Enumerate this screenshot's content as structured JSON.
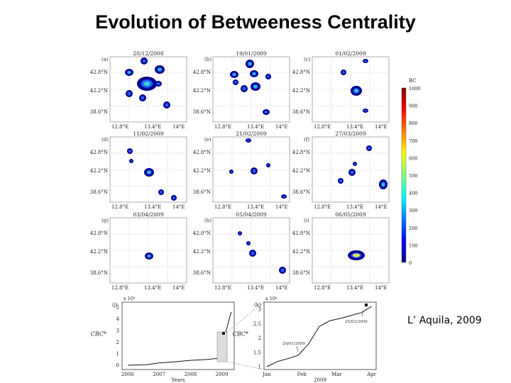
{
  "page": {
    "title": "Evolution of Betweeness Centrality",
    "caption": "L’ Aquila, 2009"
  },
  "chart_data": [
    {
      "type": "heatmap",
      "title": "Betweenness centrality maps",
      "xlabel": "",
      "ylabel": "",
      "x_ticks": [
        "12.8°E",
        "13.4°E",
        "14°E"
      ],
      "y_ticks": [
        "42.8°N",
        "42.2°N",
        "38.6°N"
      ],
      "panels": [
        {
          "label": "(a)",
          "date": "20/12/2008"
        },
        {
          "label": "(b)",
          "date": "19/01/2009"
        },
        {
          "label": "(c)",
          "date": "01/02/2009"
        },
        {
          "label": "(d)",
          "date": "11/02/2009"
        },
        {
          "label": "(e)",
          "date": "21/02/2009"
        },
        {
          "label": "(f)",
          "date": "27/03/2009"
        },
        {
          "label": "(g)",
          "date": "03/04/2009"
        },
        {
          "label": "(h)",
          "date": "05/04/2009"
        },
        {
          "label": "(i)",
          "date": "06/05/2009"
        }
      ],
      "colorbar": {
        "label": "BC",
        "range": [
          0,
          1000
        ],
        "ticks": [
          "1000",
          "900",
          "800",
          "700",
          "600",
          "500",
          "400",
          "300",
          "200",
          "100",
          "0"
        ],
        "colors": [
          "#000080",
          "#0000ff",
          "#0080ff",
          "#00ffff",
          "#80ff80",
          "#ffff00",
          "#ff8000",
          "#ff0000",
          "#800000"
        ]
      }
    },
    {
      "type": "line",
      "label": "(j)",
      "ylabel": "CBC*",
      "xlabel": "Years",
      "y_multiplier": "x 10⁴",
      "x_ticks": [
        "2006",
        "2007",
        "2008",
        "2009"
      ],
      "y_ticks": [
        "0",
        "1",
        "2",
        "3",
        "4",
        "5"
      ],
      "x": [
        2006.0,
        2006.6,
        2007.0,
        2007.5,
        2008.0,
        2008.5,
        2008.9,
        2009.0,
        2009.1,
        2009.2,
        2009.3
      ],
      "y": [
        0.0,
        0.05,
        0.2,
        0.3,
        0.42,
        0.5,
        0.6,
        1.3,
        2.6,
        3.6,
        4.6
      ]
    },
    {
      "type": "line",
      "label": "(k)",
      "ylabel": "CBC*",
      "xlabel": "2009",
      "y_multiplier": "x 10⁴",
      "x_ticks": [
        "Jan",
        "Feb",
        "Mar",
        "Apr"
      ],
      "y_ticks": [
        "1",
        "1.5",
        "2",
        "2.5",
        "3"
      ],
      "x": [
        0.0,
        0.3,
        0.6,
        0.9,
        1.2,
        1.5,
        1.8,
        2.1,
        2.4,
        2.7,
        3.0
      ],
      "y": [
        1.0,
        1.18,
        1.28,
        1.4,
        1.8,
        2.4,
        2.6,
        2.68,
        2.78,
        2.88,
        3.1
      ],
      "annotations": [
        "20/01/2009",
        "25/03/2009"
      ]
    }
  ]
}
